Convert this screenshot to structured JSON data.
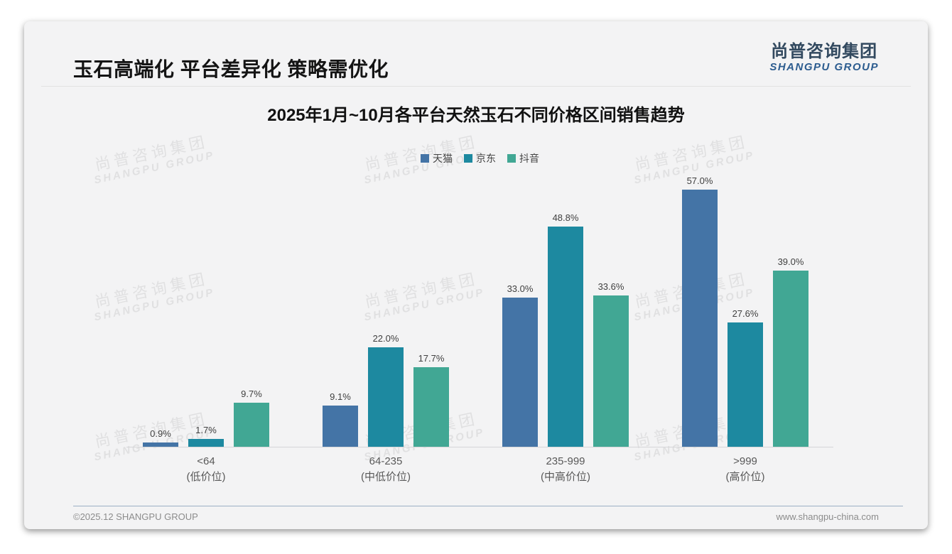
{
  "slide": {
    "title": "玉石高端化 平台差异化 策略需优化",
    "logo": {
      "cn": "尚普咨询集团",
      "en": "SHANGPU GROUP"
    },
    "watermark": {
      "cn": "尚普咨询集团",
      "en": "SHANGPU GROUP"
    },
    "footer": {
      "copyright": "©2025.12 SHANGPU GROUP",
      "website": "www.shangpu-china.com"
    }
  },
  "chart_data": {
    "type": "bar",
    "title": "2025年1月~10月各平台天然玉石不同价格区间销售趋势",
    "categories": [
      "<64",
      "64-235",
      "235-999",
      ">999"
    ],
    "category_sublabels": [
      "(低价位)",
      "(中低价位)",
      "(中高价位)",
      "(高价位)"
    ],
    "series": [
      {
        "name": "天猫",
        "color": "#4474a6",
        "values": [
          0.9,
          9.1,
          33.0,
          57.0
        ]
      },
      {
        "name": "京东",
        "color": "#1d89a0",
        "values": [
          1.7,
          22.0,
          48.8,
          27.6
        ]
      },
      {
        "name": "抖音",
        "color": "#41a794",
        "values": [
          9.7,
          17.7,
          33.6,
          39.0
        ]
      }
    ],
    "value_suffix": "%",
    "value_decimals": 1,
    "ylim": [
      0,
      63
    ],
    "grid": false,
    "legend_position": "top-center",
    "xlabel": "",
    "ylabel": ""
  }
}
